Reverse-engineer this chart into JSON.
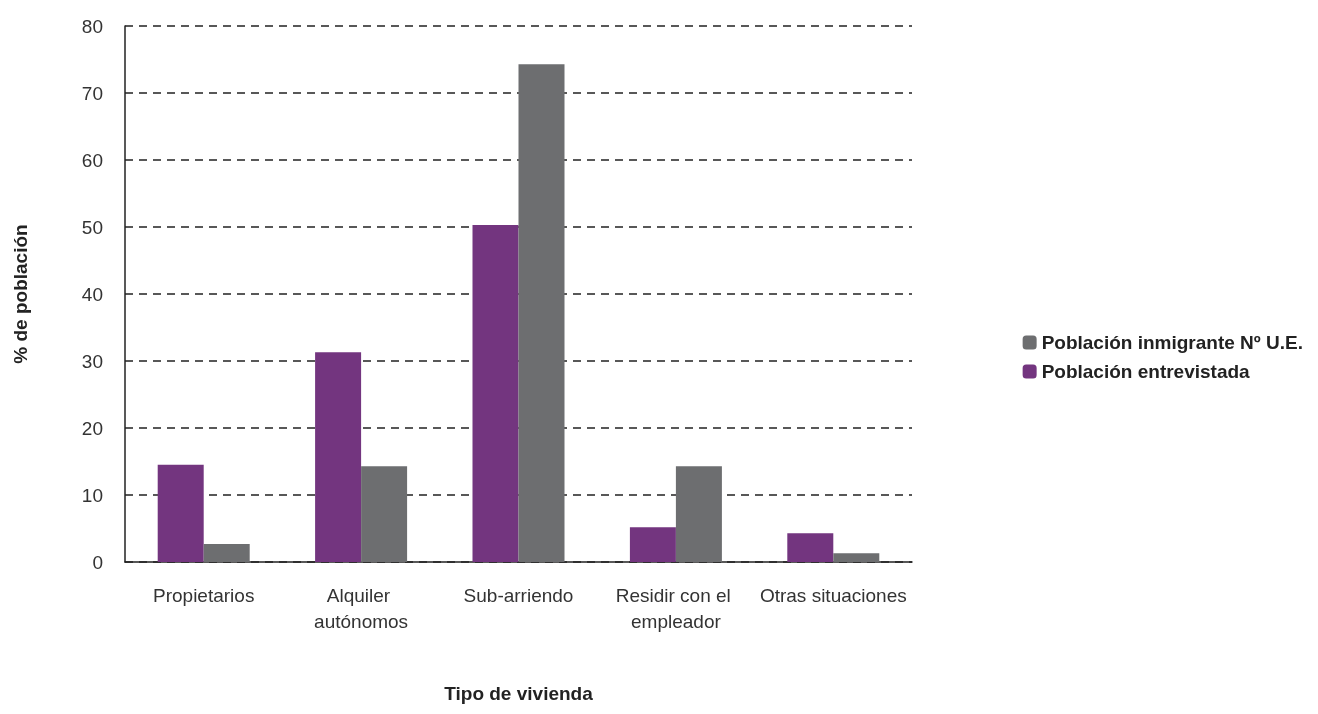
{
  "chart_data": {
    "type": "bar",
    "xlabel": "Tipo de vivienda",
    "ylabel": "% de población",
    "categories": [
      "Propietarios",
      "Alquiler autónomos",
      "Sub-arriendo",
      "Residir con el empleador",
      "Otras situaciones"
    ],
    "series": [
      {
        "name": "Población entrevistada",
        "color": "#73357f",
        "values": [
          14.5,
          31.3,
          50.3,
          5.2,
          4.3
        ]
      },
      {
        "name": "Población inmigrante Nº U.E.",
        "color": "#6d6e70",
        "values": [
          2.7,
          14.3,
          74.3,
          14.3,
          1.3
        ]
      }
    ],
    "ylim": [
      0,
      80
    ],
    "yticks": [
      0,
      10,
      20,
      30,
      40,
      50,
      60,
      70,
      80
    ],
    "grid": "y",
    "legend": "right"
  }
}
